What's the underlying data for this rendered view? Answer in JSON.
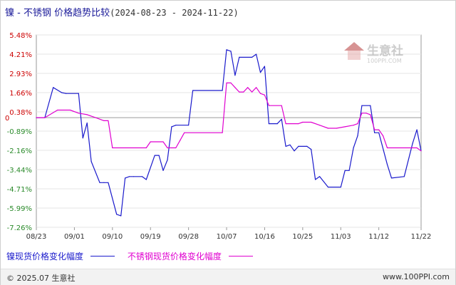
{
  "title": {
    "main": "镍 - 不锈钢  价格趋势比较",
    "dates": "(2024-08-23 - 2024-11-22)"
  },
  "watermark": {
    "brand": "生意社",
    "url": "100PPI.COM"
  },
  "legend": [
    {
      "label": "镍现货价格变化幅度",
      "color": "#1a1acc"
    },
    {
      "label": "不锈钢现货价格变化幅度",
      "color": "#e000d0"
    }
  ],
  "footer": {
    "copyright": "© 2025.07 生意社",
    "url": "www.100PPI.com"
  },
  "chart_data": {
    "type": "line",
    "title": "镍 - 不锈钢  价格趋势比较 (2024-08-23 - 2024-11-22)",
    "x_range": [
      "2024-08-23",
      "2024-11-22"
    ],
    "x_ticks": [
      "08/23",
      "09/01",
      "09/10",
      "09/19",
      "09/28",
      "10/07",
      "10/16",
      "10/25",
      "11/03",
      "11/12",
      "11/22"
    ],
    "y_ticks": [
      "5.48%",
      "4.21%",
      "2.93%",
      "1.66%",
      "0.38%",
      "-0.89%",
      "-2.16%",
      "-3.44%",
      "-4.71%",
      "-5.99%",
      "-7.26%"
    ],
    "y_min": -7.26,
    "y_max": 5.48,
    "zero_label": "0",
    "grid": "horizontal",
    "series": [
      {
        "name": "镍现货价格变化幅度",
        "color": "#1a1acc",
        "points": [
          [
            "2024-08-23",
            0.0
          ],
          [
            "2024-08-25",
            0.0
          ],
          [
            "2024-08-27",
            2.0
          ],
          [
            "2024-08-29",
            1.66
          ],
          [
            "2024-08-30",
            1.6
          ],
          [
            "2024-09-02",
            1.6
          ],
          [
            "2024-09-03",
            -1.35
          ],
          [
            "2024-09-04",
            -0.35
          ],
          [
            "2024-09-05",
            -2.9
          ],
          [
            "2024-09-07",
            -4.3
          ],
          [
            "2024-09-08",
            -4.3
          ],
          [
            "2024-09-09",
            -4.3
          ],
          [
            "2024-09-11",
            -6.4
          ],
          [
            "2024-09-12",
            -6.5
          ],
          [
            "2024-09-13",
            -4.0
          ],
          [
            "2024-09-14",
            -3.9
          ],
          [
            "2024-09-15",
            -3.9
          ],
          [
            "2024-09-17",
            -3.9
          ],
          [
            "2024-09-18",
            -4.1
          ],
          [
            "2024-09-20",
            -2.5
          ],
          [
            "2024-09-21",
            -2.5
          ],
          [
            "2024-09-22",
            -3.5
          ],
          [
            "2024-09-23",
            -2.8
          ],
          [
            "2024-09-24",
            -0.6
          ],
          [
            "2024-09-25",
            -0.5
          ],
          [
            "2024-09-28",
            -0.5
          ],
          [
            "2024-09-29",
            1.8
          ],
          [
            "2024-10-06",
            1.8
          ],
          [
            "2024-10-07",
            4.5
          ],
          [
            "2024-10-08",
            4.4
          ],
          [
            "2024-10-09",
            2.8
          ],
          [
            "2024-10-10",
            4.0
          ],
          [
            "2024-10-13",
            4.0
          ],
          [
            "2024-10-14",
            4.2
          ],
          [
            "2024-10-15",
            3.0
          ],
          [
            "2024-10-16",
            3.4
          ],
          [
            "2024-10-17",
            -0.4
          ],
          [
            "2024-10-19",
            -0.4
          ],
          [
            "2024-10-20",
            -0.1
          ],
          [
            "2024-10-21",
            -1.9
          ],
          [
            "2024-10-22",
            -1.8
          ],
          [
            "2024-10-23",
            -2.2
          ],
          [
            "2024-10-24",
            -1.9
          ],
          [
            "2024-10-26",
            -1.9
          ],
          [
            "2024-10-27",
            -2.1
          ],
          [
            "2024-10-28",
            -4.1
          ],
          [
            "2024-10-29",
            -3.9
          ],
          [
            "2024-10-31",
            -4.6
          ],
          [
            "2024-11-03",
            -4.6
          ],
          [
            "2024-11-04",
            -3.5
          ],
          [
            "2024-11-05",
            -3.5
          ],
          [
            "2024-11-06",
            -2.0
          ],
          [
            "2024-11-07",
            -1.2
          ],
          [
            "2024-11-08",
            0.8
          ],
          [
            "2024-11-10",
            0.8
          ],
          [
            "2024-11-11",
            -1.0
          ],
          [
            "2024-11-12",
            -1.0
          ],
          [
            "2024-11-14",
            -3.1
          ],
          [
            "2024-11-15",
            -4.0
          ],
          [
            "2024-11-18",
            -3.9
          ],
          [
            "2024-11-20",
            -1.7
          ],
          [
            "2024-11-21",
            -0.8
          ],
          [
            "2024-11-22",
            -2.2
          ]
        ]
      },
      {
        "name": "不锈钢现货价格变化幅度",
        "color": "#e000d0",
        "points": [
          [
            "2024-08-23",
            0.0
          ],
          [
            "2024-08-25",
            0.0
          ],
          [
            "2024-08-28",
            0.5
          ],
          [
            "2024-08-31",
            0.5
          ],
          [
            "2024-09-02",
            0.3
          ],
          [
            "2024-09-04",
            0.2
          ],
          [
            "2024-09-06",
            0.0
          ],
          [
            "2024-09-08",
            -0.2
          ],
          [
            "2024-09-09",
            -0.2
          ],
          [
            "2024-09-10",
            -2.0
          ],
          [
            "2024-09-18",
            -2.0
          ],
          [
            "2024-09-19",
            -1.6
          ],
          [
            "2024-09-22",
            -1.6
          ],
          [
            "2024-09-23",
            -2.0
          ],
          [
            "2024-09-25",
            -2.0
          ],
          [
            "2024-09-26",
            -1.5
          ],
          [
            "2024-09-27",
            -1.0
          ],
          [
            "2024-10-06",
            -1.0
          ],
          [
            "2024-10-07",
            2.3
          ],
          [
            "2024-10-08",
            2.3
          ],
          [
            "2024-10-09",
            2.0
          ],
          [
            "2024-10-10",
            1.7
          ],
          [
            "2024-10-11",
            1.7
          ],
          [
            "2024-10-12",
            2.0
          ],
          [
            "2024-10-13",
            1.7
          ],
          [
            "2024-10-14",
            2.0
          ],
          [
            "2024-10-15",
            1.6
          ],
          [
            "2024-10-16",
            1.5
          ],
          [
            "2024-10-17",
            0.8
          ],
          [
            "2024-10-20",
            0.8
          ],
          [
            "2024-10-21",
            -0.4
          ],
          [
            "2024-10-24",
            -0.4
          ],
          [
            "2024-10-25",
            -0.3
          ],
          [
            "2024-10-27",
            -0.3
          ],
          [
            "2024-10-29",
            -0.5
          ],
          [
            "2024-10-31",
            -0.7
          ],
          [
            "2024-11-02",
            -0.7
          ],
          [
            "2024-11-04",
            -0.6
          ],
          [
            "2024-11-06",
            -0.5
          ],
          [
            "2024-11-07",
            -0.4
          ],
          [
            "2024-11-08",
            0.3
          ],
          [
            "2024-11-09",
            0.3
          ],
          [
            "2024-11-10",
            0.2
          ],
          [
            "2024-11-11",
            -0.8
          ],
          [
            "2024-11-12",
            -0.8
          ],
          [
            "2024-11-13",
            -1.2
          ],
          [
            "2024-11-14",
            -2.0
          ],
          [
            "2024-11-21",
            -2.0
          ],
          [
            "2024-11-22",
            -2.2
          ]
        ]
      }
    ]
  }
}
